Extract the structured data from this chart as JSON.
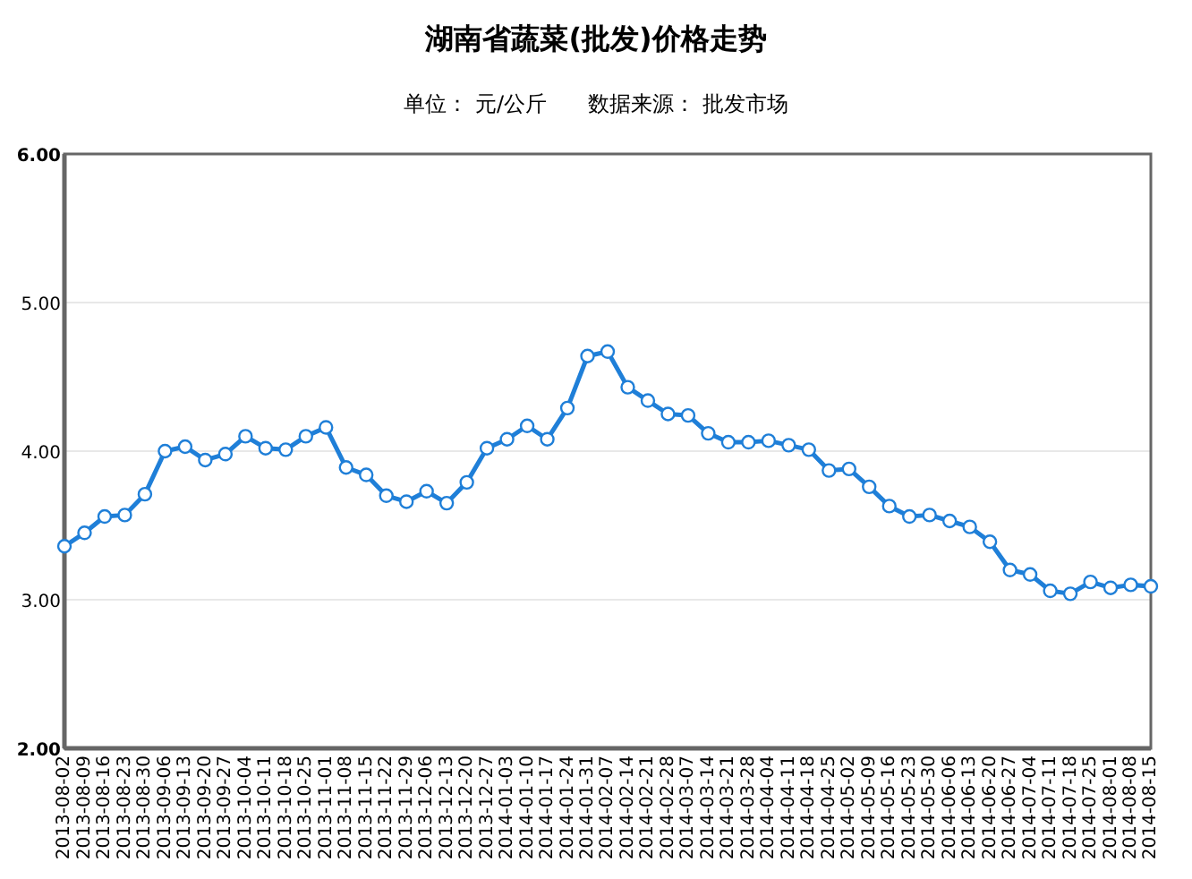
{
  "chart_data": {
    "type": "line",
    "title": "湖南省蔬菜(批发)价格走势",
    "subtitle": "单位： 元/公斤      数据来源： 批发市场",
    "categories": [
      "2013-08-02",
      "2013-08-09",
      "2013-08-16",
      "2013-08-23",
      "2013-08-30",
      "2013-09-06",
      "2013-09-13",
      "2013-09-20",
      "2013-09-27",
      "2013-10-04",
      "2013-10-11",
      "2013-10-18",
      "2013-10-25",
      "2013-11-01",
      "2013-11-08",
      "2013-11-15",
      "2013-11-22",
      "2013-11-29",
      "2013-12-06",
      "2013-12-13",
      "2013-12-20",
      "2013-12-27",
      "2014-01-03",
      "2014-01-10",
      "2014-01-17",
      "2014-01-24",
      "2014-01-31",
      "2014-02-07",
      "2014-02-14",
      "2014-02-21",
      "2014-02-28",
      "2014-03-07",
      "2014-03-14",
      "2014-03-21",
      "2014-03-28",
      "2014-04-04",
      "2014-04-11",
      "2014-04-18",
      "2014-04-25",
      "2014-05-02",
      "2014-05-09",
      "2014-05-16",
      "2014-05-23",
      "2014-05-30",
      "2014-06-06",
      "2014-06-13",
      "2014-06-20",
      "2014-06-27",
      "2014-07-04",
      "2014-07-11",
      "2014-07-18",
      "2014-07-25",
      "2014-08-01",
      "2014-08-08",
      "2014-08-15"
    ],
    "series": [
      {
        "color": "#1f7fd8",
        "values": [
          3.36,
          3.45,
          3.56,
          3.57,
          3.71,
          4.0,
          4.03,
          3.94,
          3.98,
          4.1,
          4.02,
          4.01,
          4.1,
          4.16,
          3.89,
          3.84,
          3.7,
          3.66,
          3.73,
          3.65,
          3.79,
          4.02,
          4.08,
          4.17,
          4.08,
          4.29,
          4.64,
          4.67,
          4.43,
          4.34,
          4.25,
          4.24,
          4.12,
          4.06,
          4.06,
          4.07,
          4.04,
          4.01,
          3.87,
          3.88,
          3.76,
          3.63,
          3.56,
          3.57,
          3.53,
          3.49,
          3.39,
          3.2,
          3.17,
          3.06,
          3.04,
          3.12,
          3.08,
          3.1,
          3.09
        ]
      }
    ],
    "ylim": [
      2,
      6
    ],
    "yticks": [
      {
        "value": 2,
        "label": "2.00"
      },
      {
        "value": 3,
        "label": "3.00"
      },
      {
        "value": 4,
        "label": "4.00"
      },
      {
        "value": 5,
        "label": "5.00"
      },
      {
        "value": 6,
        "label": "6.00"
      }
    ],
    "grid": "y",
    "marker": "circle",
    "line_style": "solid"
  }
}
